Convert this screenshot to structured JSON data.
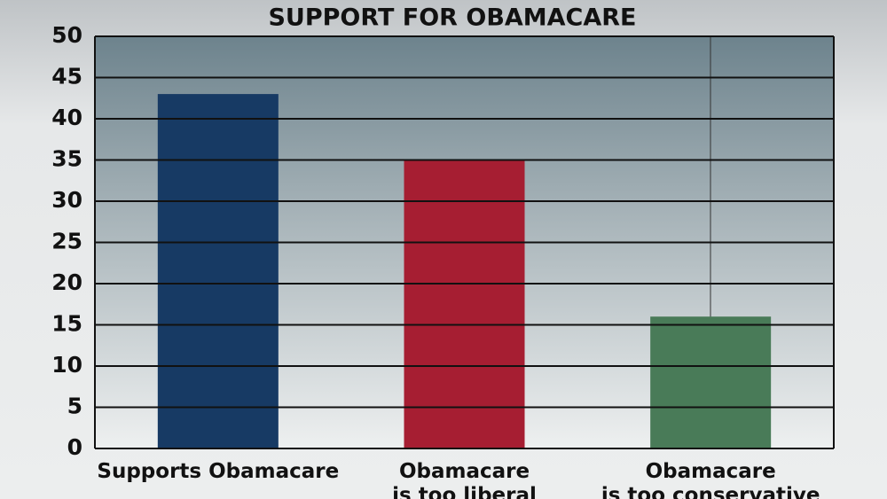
{
  "chart_data": {
    "type": "bar",
    "title": "SUPPORT FOR OBAMACARE",
    "categories": [
      "Supports Obamacare",
      "Obamacare\nis too liberal",
      "Obamacare\nis too conservative"
    ],
    "values": [
      43,
      35,
      16
    ],
    "colors": [
      "#173a64",
      "#a61e32",
      "#497b58"
    ],
    "ylim": [
      0,
      50
    ],
    "yticks": [
      0,
      5,
      10,
      15,
      20,
      25,
      30,
      35,
      40,
      45,
      50
    ],
    "grid": true
  }
}
